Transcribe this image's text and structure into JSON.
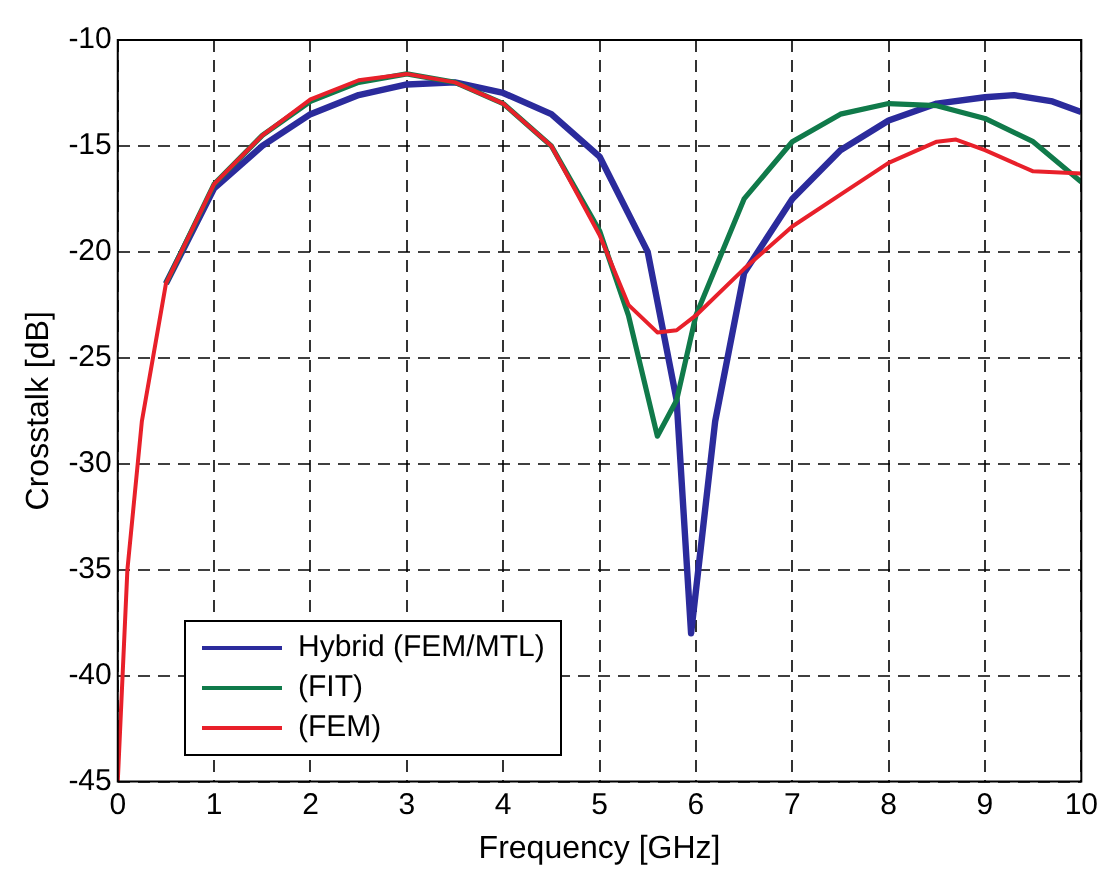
{
  "chart_data": {
    "type": "line",
    "xlabel": "Frequency [GHz]",
    "ylabel": "Crosstalk [dB]",
    "xlim": [
      0,
      10
    ],
    "ylim": [
      -45,
      -10
    ],
    "xticks": [
      0,
      1,
      2,
      3,
      4,
      5,
      6,
      7,
      8,
      9,
      10
    ],
    "yticks": [
      -45,
      -40,
      -35,
      -30,
      -25,
      -20,
      -15,
      -10
    ],
    "grid": true,
    "legend": "bottom left",
    "line_style": "solid",
    "marker": "none",
    "series": [
      {
        "name": "Hybrid (FEM/MTL)",
        "color": "#2b2b9c",
        "x": [
          0.5,
          1,
          1.5,
          2,
          2.5,
          3,
          3.5,
          4,
          4.5,
          5,
          5.5,
          5.8,
          5.95,
          6.2,
          6.5,
          7,
          7.5,
          8,
          8.5,
          9,
          9.3,
          9.7,
          10
        ],
        "values": [
          -21.5,
          -17,
          -15,
          -13.5,
          -12.6,
          -12.1,
          -12,
          -12.5,
          -13.5,
          -15.5,
          -20,
          -27,
          -38,
          -28,
          -21,
          -17.5,
          -15.2,
          -13.8,
          -13,
          -12.7,
          -12.6,
          -12.9,
          -13.4
        ]
      },
      {
        "name": "(FIT)",
        "color": "#107a4a",
        "x": [
          0.5,
          1,
          1.5,
          2,
          2.5,
          3,
          3.5,
          4,
          4.5,
          5,
          5.3,
          5.6,
          5.8,
          6,
          6.5,
          7,
          7.5,
          8,
          8.5,
          9,
          9.5,
          10
        ],
        "values": [
          -21.5,
          -16.8,
          -14.5,
          -12.9,
          -12,
          -11.6,
          -12,
          -13,
          -15,
          -19,
          -23,
          -28.7,
          -27,
          -23,
          -17.5,
          -14.8,
          -13.5,
          -13,
          -13.1,
          -13.7,
          -14.8,
          -16.7
        ]
      },
      {
        "name": "(FEM)",
        "color": "#e8202a",
        "x": [
          0,
          0.1,
          0.25,
          0.5,
          1,
          1.5,
          2,
          2.5,
          3,
          3.5,
          4,
          4.5,
          5,
          5.3,
          5.6,
          5.8,
          6,
          6.5,
          7,
          7.5,
          8,
          8.5,
          8.7,
          9,
          9.5,
          10
        ],
        "values": [
          -45,
          -35,
          -28,
          -21.5,
          -16.8,
          -14.5,
          -12.8,
          -11.9,
          -11.6,
          -12,
          -13,
          -15,
          -19.2,
          -22.5,
          -23.8,
          -23.7,
          -23,
          -20.8,
          -18.8,
          -17.3,
          -15.8,
          -14.8,
          -14.7,
          -15.2,
          -16.2,
          -16.3
        ]
      }
    ]
  }
}
